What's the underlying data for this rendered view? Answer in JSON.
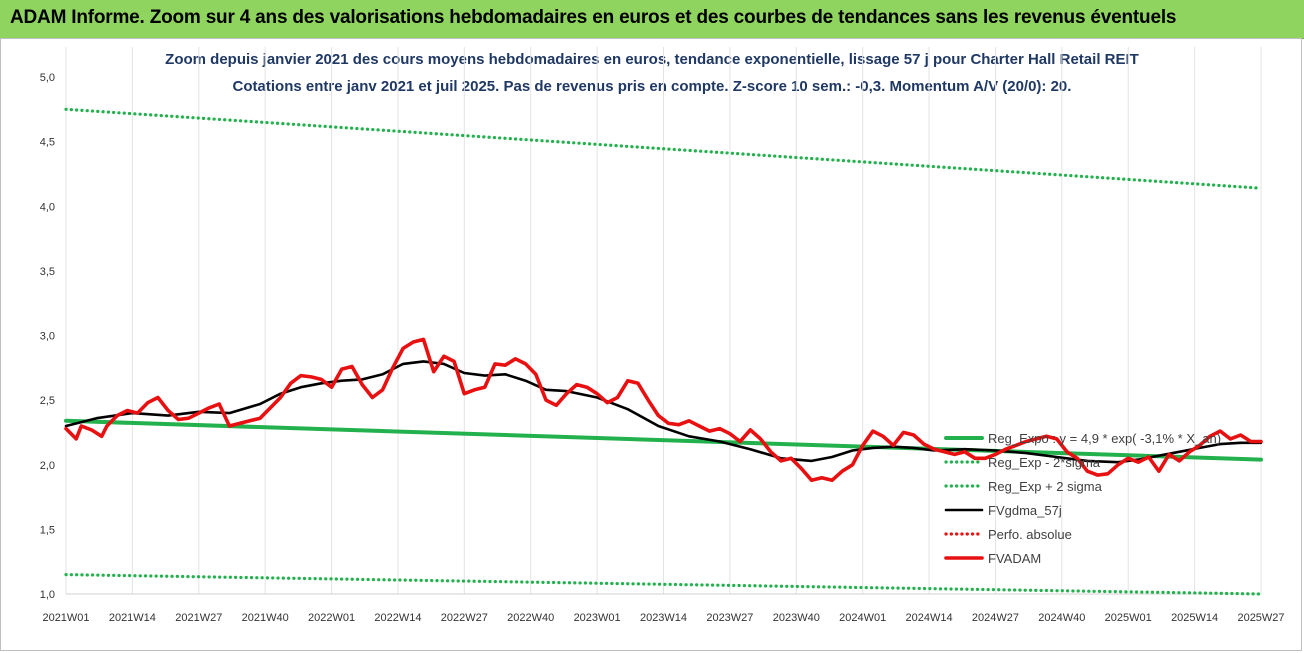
{
  "banner": {
    "title": "ADAM Informe. Zoom sur 4 ans des valorisations hebdomadaires en euros et des courbes de tendances sans les revenus éventuels"
  },
  "chart_data": {
    "type": "line",
    "title": "Zoom depuis janvier 2021 des cours moyens hebdomadaires en euros, tendance exponentielle, lissage 57 j pour Charter Hall Retail REIT",
    "subtitle": "Cotations entre janv 2021 et juil 2025. Pas de revenus pris en compte. Z-score 10 sem.: -0,3. Momentum A/V (20/0): 20.",
    "xlabel": "",
    "ylabel": "",
    "ylim": [
      1.0,
      5.0
    ],
    "y_ticks": [
      "1,0",
      "1,5",
      "2,0",
      "2,5",
      "3,0",
      "3,5",
      "4,0",
      "4,5",
      "5,0"
    ],
    "x_ticks": [
      "2021W01",
      "2021W14",
      "2021W27",
      "2021W40",
      "2022W01",
      "2022W14",
      "2022W27",
      "2022W40",
      "2023W01",
      "2023W14",
      "2023W27",
      "2023W40",
      "2024W01",
      "2024W14",
      "2024W27",
      "2024W40",
      "2025W01",
      "2025W14",
      "2025W27"
    ],
    "x_range_weeks": [
      0,
      234
    ],
    "grid": "vertical",
    "legend_position": "right",
    "series": [
      {
        "name": "Reg_Expo : y = 4,9 * exp( -3,1% * X_an)",
        "color": "#22b14c",
        "style": "solid",
        "x": [
          0,
          234
        ],
        "y": [
          2.34,
          2.04
        ]
      },
      {
        "name": "Reg_Exp - 2*sigma",
        "color": "#22b14c",
        "style": "dotted",
        "x": [
          0,
          234
        ],
        "y": [
          1.15,
          1.0
        ]
      },
      {
        "name": "Reg_Exp + 2 sigma",
        "color": "#22b14c",
        "style": "dotted",
        "x": [
          0,
          234
        ],
        "y": [
          4.75,
          4.14
        ]
      },
      {
        "name": "FVgdma_57j",
        "color": "#000000",
        "style": "solid",
        "x": [
          0,
          6,
          13,
          20,
          26,
          32,
          38,
          42,
          46,
          50,
          54,
          58,
          62,
          66,
          70,
          74,
          78,
          82,
          86,
          90,
          94,
          98,
          104,
          110,
          116,
          122,
          128,
          134,
          140,
          146,
          150,
          154,
          158,
          162,
          166,
          170,
          176,
          182,
          188,
          194,
          200,
          206,
          210,
          214,
          218,
          222,
          226,
          230,
          234
        ],
        "y": [
          2.3,
          2.36,
          2.4,
          2.38,
          2.41,
          2.4,
          2.47,
          2.55,
          2.6,
          2.63,
          2.65,
          2.66,
          2.7,
          2.78,
          2.8,
          2.78,
          2.71,
          2.69,
          2.7,
          2.65,
          2.58,
          2.57,
          2.52,
          2.43,
          2.3,
          2.22,
          2.18,
          2.12,
          2.05,
          2.03,
          2.06,
          2.11,
          2.13,
          2.14,
          2.13,
          2.11,
          2.12,
          2.11,
          2.09,
          2.06,
          2.03,
          2.02,
          2.04,
          2.07,
          2.1,
          2.13,
          2.16,
          2.17,
          2.17
        ]
      },
      {
        "name": "Perfo. absolue",
        "color": "#e81010",
        "style": "dotted",
        "x": [],
        "y": []
      },
      {
        "name": "FVADAM",
        "color": "#e81010",
        "style": "solid",
        "x": [
          0,
          2,
          3,
          5,
          7,
          8,
          10,
          12,
          14,
          16,
          18,
          20,
          22,
          24,
          26,
          28,
          30,
          32,
          34,
          36,
          38,
          40,
          42,
          44,
          46,
          48,
          50,
          52,
          54,
          56,
          58,
          60,
          62,
          64,
          66,
          68,
          70,
          72,
          74,
          76,
          78,
          80,
          82,
          84,
          86,
          88,
          90,
          92,
          94,
          96,
          98,
          100,
          102,
          104,
          106,
          108,
          110,
          112,
          114,
          116,
          118,
          120,
          122,
          124,
          126,
          128,
          130,
          132,
          134,
          136,
          138,
          140,
          142,
          144,
          146,
          148,
          150,
          152,
          154,
          156,
          158,
          160,
          162,
          164,
          166,
          168,
          170,
          172,
          174,
          176,
          178,
          180,
          182,
          184,
          186,
          188,
          190,
          192,
          194,
          196,
          198,
          200,
          202,
          204,
          206,
          208,
          210,
          212,
          214,
          216,
          218,
          220,
          222,
          224,
          226,
          228,
          230,
          232,
          234
        ],
        "y": [
          2.28,
          2.2,
          2.3,
          2.27,
          2.22,
          2.3,
          2.38,
          2.42,
          2.4,
          2.48,
          2.52,
          2.42,
          2.35,
          2.36,
          2.4,
          2.44,
          2.47,
          2.3,
          2.32,
          2.34,
          2.36,
          2.44,
          2.52,
          2.63,
          2.69,
          2.68,
          2.66,
          2.6,
          2.74,
          2.76,
          2.62,
          2.52,
          2.58,
          2.75,
          2.9,
          2.95,
          2.97,
          2.72,
          2.84,
          2.8,
          2.55,
          2.58,
          2.6,
          2.78,
          2.77,
          2.82,
          2.78,
          2.7,
          2.5,
          2.46,
          2.55,
          2.62,
          2.6,
          2.55,
          2.48,
          2.52,
          2.65,
          2.63,
          2.5,
          2.38,
          2.32,
          2.31,
          2.34,
          2.3,
          2.26,
          2.28,
          2.24,
          2.18,
          2.27,
          2.2,
          2.1,
          2.03,
          2.05,
          1.97,
          1.88,
          1.9,
          1.88,
          1.95,
          2.0,
          2.15,
          2.26,
          2.22,
          2.15,
          2.25,
          2.23,
          2.16,
          2.12,
          2.1,
          2.08,
          2.1,
          2.05,
          2.05,
          2.08,
          2.12,
          2.15,
          2.18,
          2.2,
          2.22,
          2.2,
          2.1,
          2.05,
          1.95,
          1.92,
          1.93,
          2.0,
          2.05,
          2.02,
          2.06,
          1.95,
          2.08,
          2.03,
          2.1,
          2.15,
          2.22,
          2.26,
          2.2,
          2.23,
          2.18,
          2.18
        ]
      }
    ]
  }
}
